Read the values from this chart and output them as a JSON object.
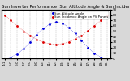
{
  "title": "Sun Inverter Performance  Sun Altitude Angle & Sun Incidence Angle on PV Panels",
  "legend_blue": "Sun Altitude Angle",
  "legend_red": "Sun Incidence Angle on PV Panels",
  "background_color": "#d8d8d8",
  "plot_bg": "#ffffff",
  "grid_color": "#aaaaaa",
  "blue_color": "#0000dd",
  "red_color": "#dd0000",
  "x_labels": [
    "4:1",
    "5:0",
    "6:0",
    "7:0",
    "8:0",
    "9:0",
    "10:",
    "11:",
    "12:",
    "13:",
    "14:",
    "15:",
    "16:",
    "17:",
    "18:",
    "19:",
    "20:"
  ],
  "blue_y": [
    0,
    2,
    8,
    18,
    30,
    44,
    55,
    63,
    67,
    65,
    57,
    46,
    33,
    20,
    9,
    2,
    0
  ],
  "red_y": [
    80,
    70,
    60,
    50,
    42,
    35,
    30,
    27,
    26,
    27,
    30,
    36,
    42,
    51,
    60,
    70,
    80
  ],
  "ylim": [
    0,
    90
  ],
  "title_fontsize": 3.8,
  "tick_fontsize": 3.0,
  "legend_fontsize": 2.8
}
